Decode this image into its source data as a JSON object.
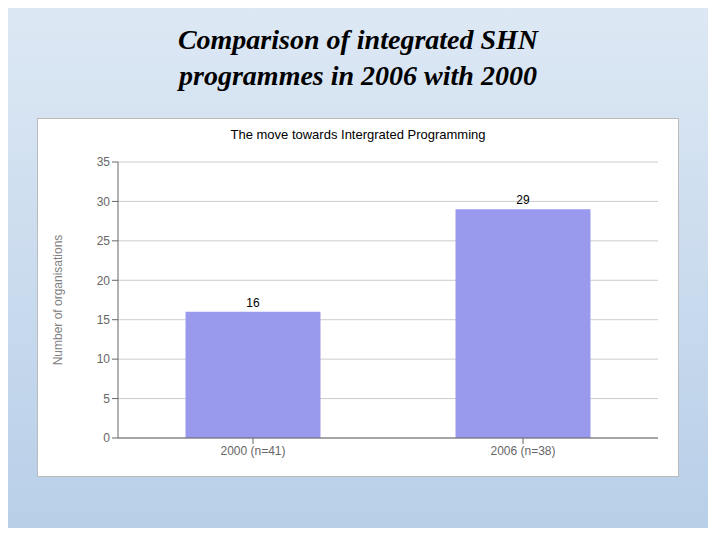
{
  "chart_data": {
    "type": "bar",
    "title": "Comparison of integrated SHN\nprogrammes in 2006 with 2000",
    "subtitle": "The move towards Intergrated Programming",
    "categories": [
      "2000 (n=41)",
      "2006 (n=38)"
    ],
    "values": [
      16,
      29
    ],
    "color": "#9999ee",
    "ylabel": "Number of organisations",
    "ylim": [
      0,
      35
    ],
    "yticks": [
      0,
      5,
      10,
      15,
      20,
      25,
      30,
      35
    ],
    "grid": true,
    "data_labels": true
  }
}
